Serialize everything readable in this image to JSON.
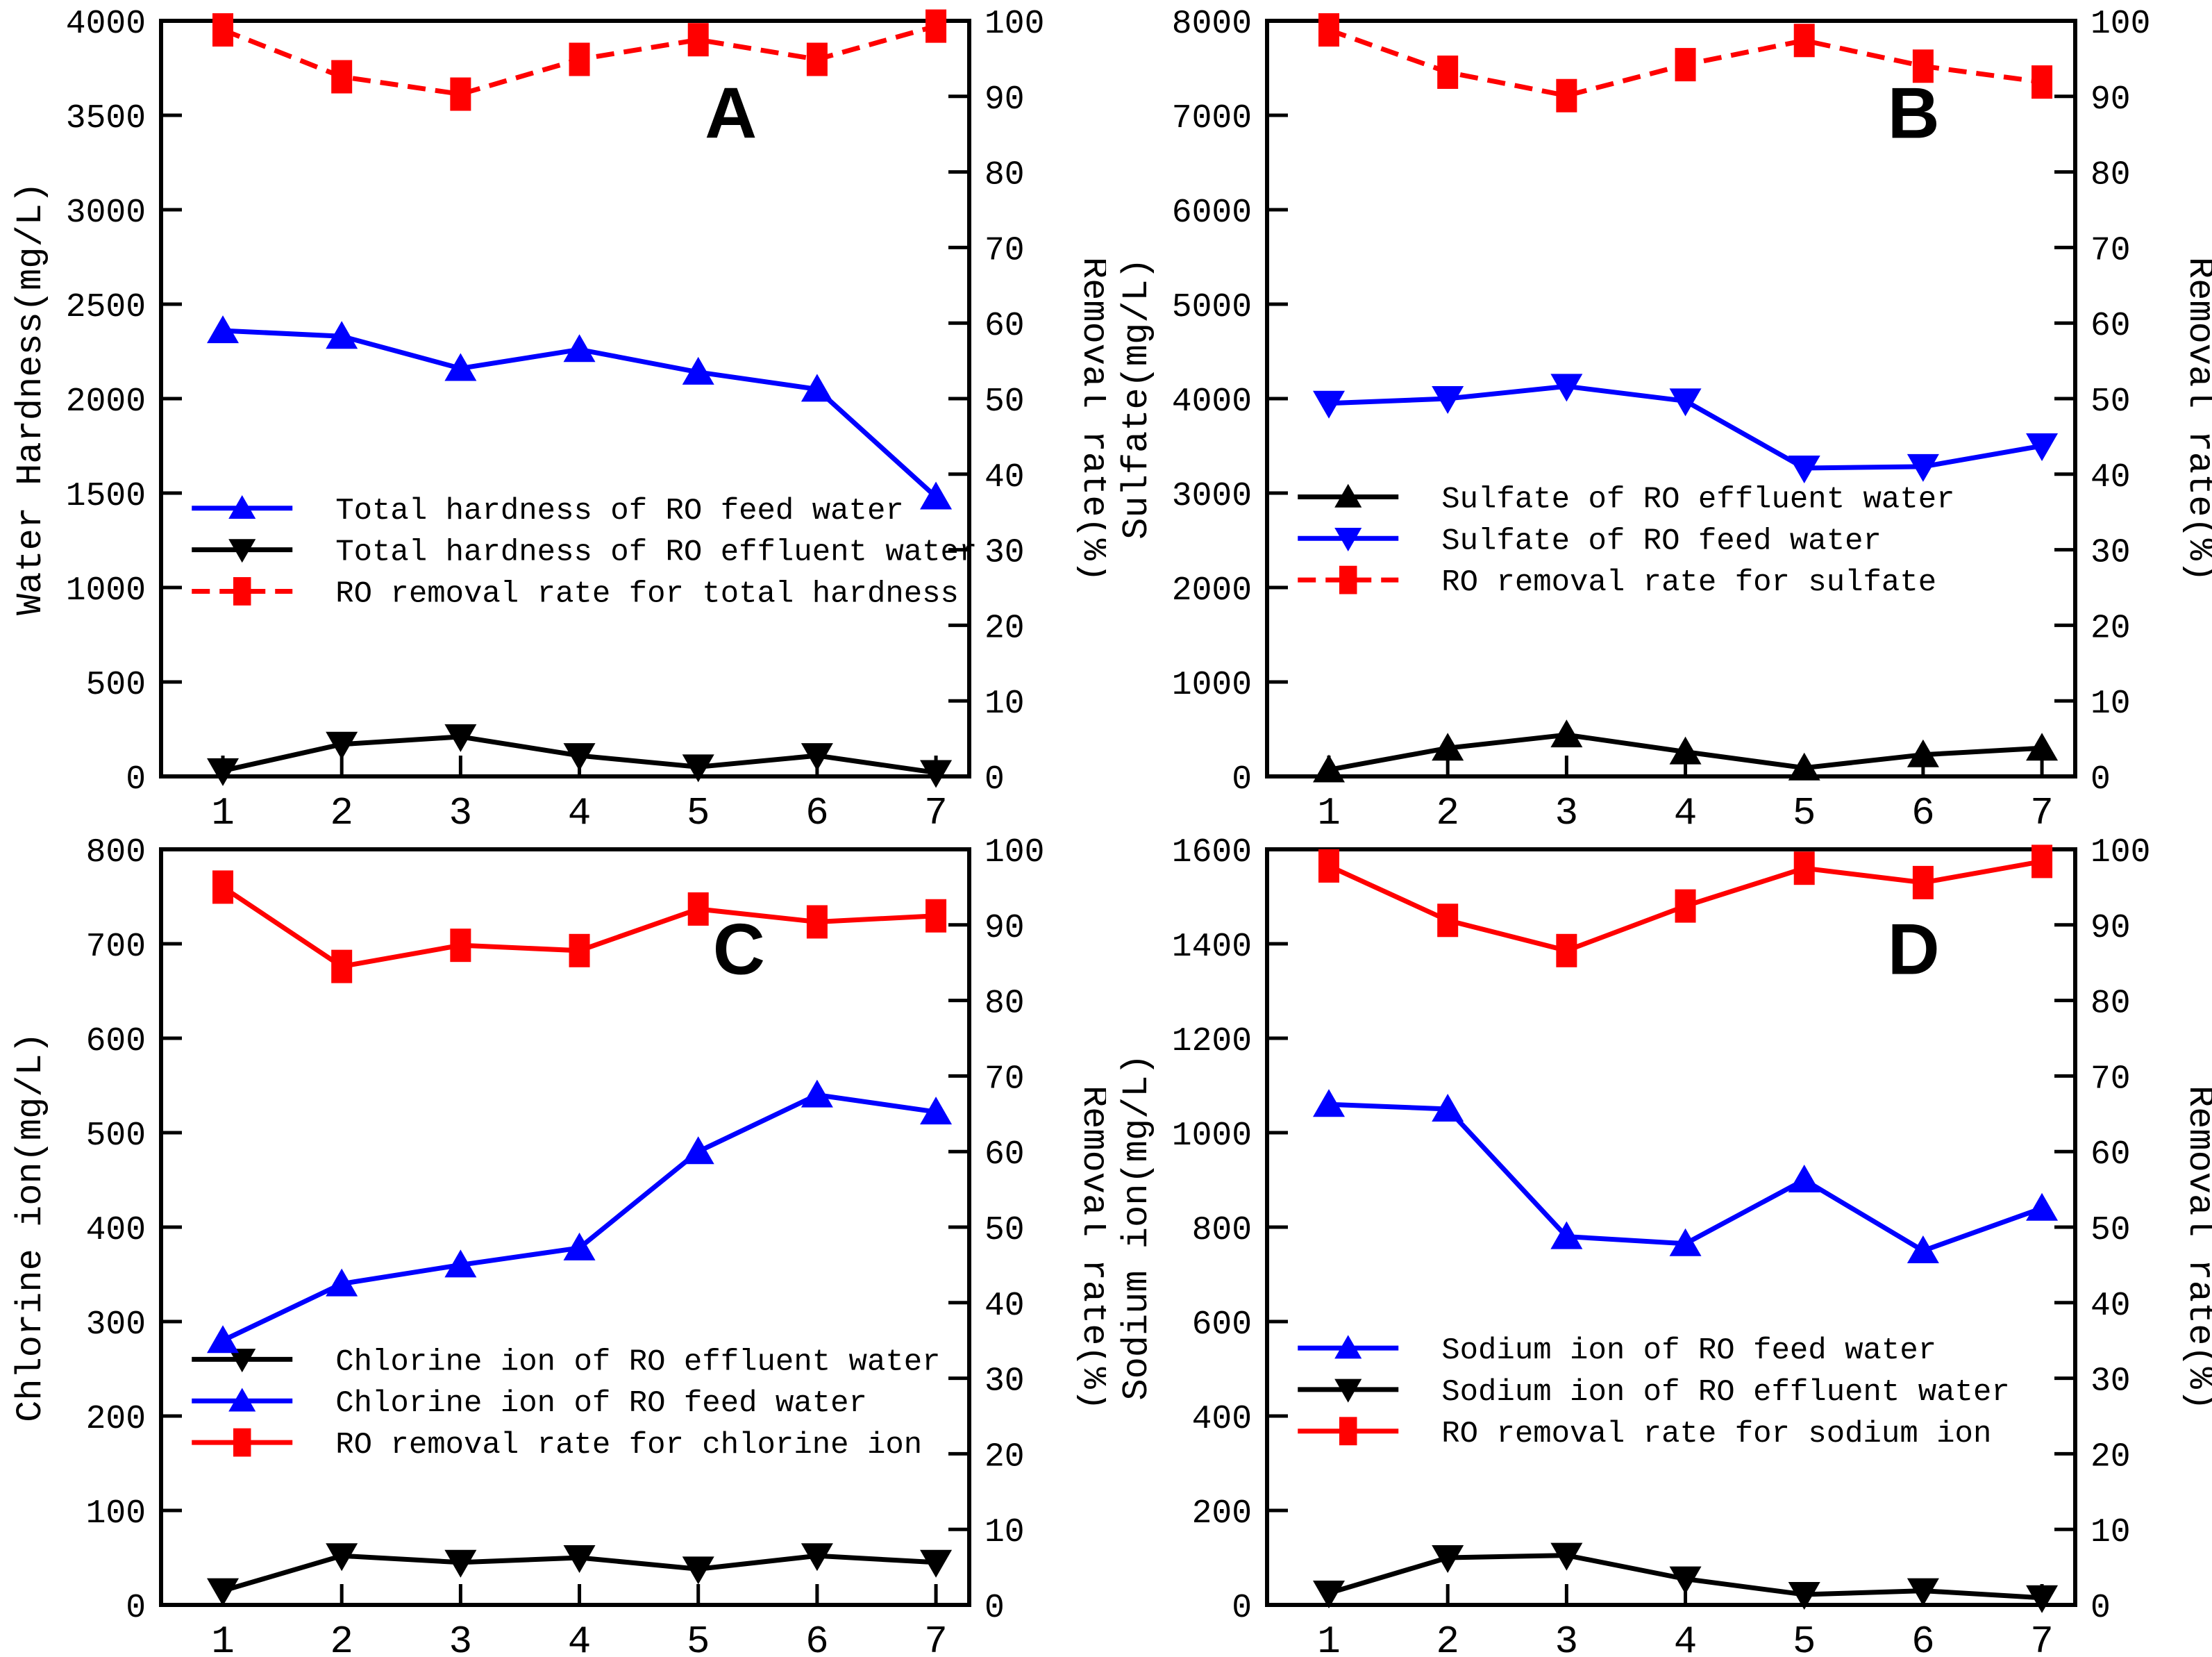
{
  "figure": {
    "background": "#ffffff",
    "accent_colors": {
      "feed_or_series_blue": "#0000ff",
      "effluent_black": "#000000",
      "removal_red": "#ff0000"
    }
  },
  "chart_data": [
    {
      "type": "line",
      "letter": "A",
      "ylabel_left": "Water Hardness(mg/L)",
      "ylabel_right": "Removal rate(%)",
      "y_left": {
        "min": 0,
        "max": 4000,
        "step": 500
      },
      "y_right": {
        "min": 0,
        "max": 100,
        "step": 10
      },
      "x": [
        1,
        2,
        3,
        4,
        5,
        6,
        7
      ],
      "grid": false,
      "legend_position": "center-left-inside",
      "series": [
        {
          "name": "Total hardness of RO feed water",
          "color": "#0000ff",
          "marker": "triangle-up",
          "axis": "left",
          "dashed": false,
          "values": [
            2360,
            2330,
            2160,
            2260,
            2140,
            2050,
            1480
          ]
        },
        {
          "name": "Total hardness of RO effluent water",
          "color": "#000000",
          "marker": "triangle-down",
          "axis": "left",
          "dashed": false,
          "values": [
            30,
            170,
            210,
            110,
            50,
            110,
            20
          ]
        },
        {
          "name": "RO removal rate for total hardness",
          "color": "#ff0000",
          "marker": "square",
          "axis": "right",
          "dashed": true,
          "values": [
            98.8,
            92.6,
            90.3,
            94.9,
            97.5,
            94.9,
            99.3
          ]
        }
      ]
    },
    {
      "type": "line",
      "letter": "B",
      "ylabel_left": "Sulfate(mg/L)",
      "ylabel_right": "Removal rate(%)",
      "y_left": {
        "min": 0,
        "max": 8000,
        "step": 1000
      },
      "y_right": {
        "min": 0,
        "max": 100,
        "step": 10
      },
      "x": [
        1,
        2,
        3,
        4,
        5,
        6,
        7
      ],
      "grid": false,
      "legend_position": "center-left-inside",
      "series": [
        {
          "name": "Sulfate of RO effluent water",
          "color": "#000000",
          "marker": "triangle-up",
          "axis": "left",
          "dashed": false,
          "values": [
            70,
            300,
            440,
            260,
            90,
            230,
            300
          ]
        },
        {
          "name": "Sulfate of RO feed water",
          "color": "#0000ff",
          "marker": "triangle-down",
          "axis": "left",
          "dashed": false,
          "values": [
            3950,
            4000,
            4130,
            3975,
            3265,
            3280,
            3500
          ]
        },
        {
          "name": "RO removal rate for sulfate",
          "color": "#ff0000",
          "marker": "square",
          "axis": "right",
          "dashed": true,
          "values": [
            98.8,
            93.2,
            90.1,
            94.2,
            97.4,
            94.0,
            91.9
          ]
        }
      ]
    },
    {
      "type": "line",
      "letter": "C",
      "ylabel_left": "Chlorine ion(mg/L)",
      "ylabel_right": "Removal rate(%)",
      "y_left": {
        "min": 0,
        "max": 800,
        "step": 100
      },
      "y_right": {
        "min": 0,
        "max": 100,
        "step": 10
      },
      "x": [
        1,
        2,
        3,
        4,
        5,
        6,
        7
      ],
      "grid": false,
      "legend_position": "center-left-inside",
      "series": [
        {
          "name": "Chlorine ion of RO effluent water",
          "color": "#000000",
          "marker": "triangle-down",
          "axis": "left",
          "dashed": false,
          "values": [
            15,
            52,
            45,
            50,
            38,
            52,
            45
          ]
        },
        {
          "name": "Chlorine ion of RO feed water",
          "color": "#0000ff",
          "marker": "triangle-up",
          "axis": "left",
          "dashed": false,
          "values": [
            280,
            340,
            360,
            378,
            480,
            540,
            522
          ]
        },
        {
          "name": "RO removal rate for chlorine ion",
          "color": "#ff0000",
          "marker": "square",
          "axis": "right",
          "dashed": false,
          "values": [
            95.0,
            84.5,
            87.3,
            86.6,
            92.1,
            90.4,
            91.2
          ]
        }
      ]
    },
    {
      "type": "line",
      "letter": "D",
      "ylabel_left": "Sodium ion(mg/L)",
      "ylabel_right": "Removal rate(%)",
      "y_left": {
        "min": 0,
        "max": 1600,
        "step": 200
      },
      "y_right": {
        "min": 0,
        "max": 100,
        "step": 10
      },
      "x": [
        1,
        2,
        3,
        4,
        5,
        6,
        7
      ],
      "grid": false,
      "legend_position": "center-left-inside",
      "series": [
        {
          "name": "Sodium ion of RO feed water",
          "color": "#0000ff",
          "marker": "triangle-up",
          "axis": "left",
          "dashed": false,
          "values": [
            1060,
            1050,
            780,
            765,
            900,
            750,
            840
          ]
        },
        {
          "name": "Sodium ion of RO effluent water",
          "color": "#000000",
          "marker": "triangle-down",
          "axis": "left",
          "dashed": false,
          "values": [
            25,
            100,
            105,
            55,
            22,
            30,
            15
          ]
        },
        {
          "name": "RO removal rate for sodium ion",
          "color": "#ff0000",
          "marker": "square",
          "axis": "right",
          "dashed": false,
          "values": [
            97.8,
            90.6,
            86.6,
            92.5,
            97.5,
            95.6,
            98.4
          ]
        }
      ]
    }
  ]
}
